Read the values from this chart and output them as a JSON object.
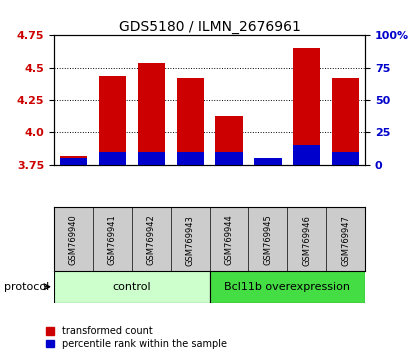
{
  "title": "GDS5180 / ILMN_2676961",
  "samples": [
    "GSM769940",
    "GSM769941",
    "GSM769942",
    "GSM769943",
    "GSM769944",
    "GSM769945",
    "GSM769946",
    "GSM769947"
  ],
  "red_values": [
    3.82,
    4.44,
    4.54,
    4.42,
    4.13,
    3.77,
    4.65,
    4.42
  ],
  "blue_pct_values": [
    5,
    10,
    10,
    10,
    10,
    5,
    15,
    10
  ],
  "ymin": 3.75,
  "ymax": 4.75,
  "y_ticks": [
    3.75,
    4.0,
    4.25,
    4.5,
    4.75
  ],
  "y2_ticks": [
    0,
    25,
    50,
    75,
    100
  ],
  "y2_tick_labels": [
    "0",
    "25",
    "50",
    "75",
    "100%"
  ],
  "groups": [
    {
      "label": "control",
      "start": 0,
      "end": 4,
      "color": "#ccffcc"
    },
    {
      "label": "Bcl11b overexpression",
      "start": 4,
      "end": 8,
      "color": "#44dd44"
    }
  ],
  "protocol_label": "protocol",
  "bar_width": 0.7,
  "bar_color": "#cc0000",
  "blue_color": "#0000cc",
  "label_bg": "#cccccc",
  "tick_color_left": "#cc0000",
  "tick_color_right": "#0000cc",
  "legend_red_label": "transformed count",
  "legend_blue_label": "percentile rank within the sample",
  "title_fontsize": 10,
  "tick_fontsize": 8,
  "sample_fontsize": 6,
  "legend_fontsize": 7,
  "protocol_fontsize": 8,
  "group_label_fontsize": 8
}
